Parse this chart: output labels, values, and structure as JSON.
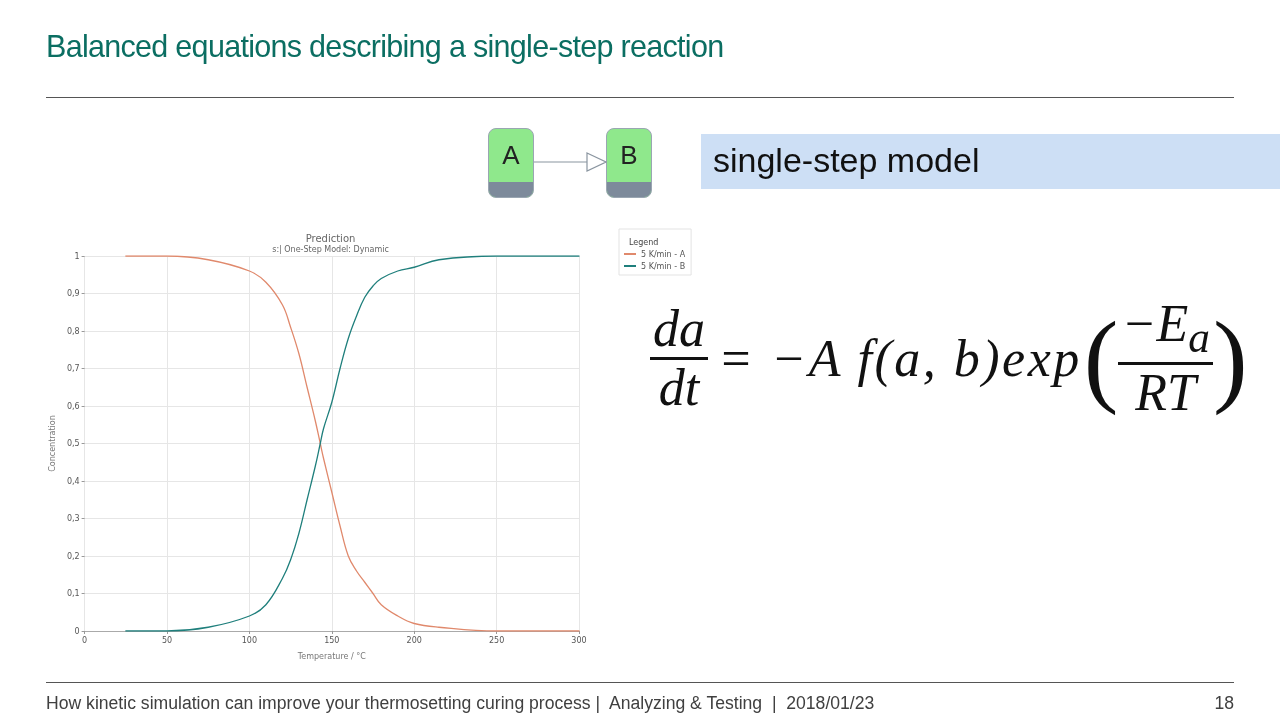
{
  "chart_data": {
    "type": "line",
    "title": "Prediction",
    "subtitle": "s:| One-Step Model: Dynamic",
    "xlabel": "Temperature / °C",
    "ylabel": "Concentration",
    "legend_title": "Legend",
    "annotations": [
      "Balanced equations describing a single-step reaction",
      "single-step model",
      "da",
      "dt",
      "= −A f(a, b)exp",
      "(",
      "−E$_{a}$",
      "RT",
      ")",
      "A",
      "B",
      "How kinetic simulation can improve your thermosetting curing process |  Analyzing & Testing  |  2018/01/23",
      "18"
    ],
    "x": [
      25,
      50,
      75,
      100,
      110,
      120,
      125,
      130,
      135,
      140,
      143,
      145,
      150,
      155,
      160,
      165,
      170,
      175,
      180,
      190,
      200,
      215,
      250,
      300
    ],
    "series": [
      {
        "name": "5 K/min - A",
        "color": "#e0896c",
        "values": [
          1,
          1,
          0.99,
          0.96,
          0.93,
          0.87,
          0.81,
          0.74,
          0.65,
          0.56,
          0.5,
          0.46,
          0.37,
          0.28,
          0.2,
          0.16,
          0.13,
          0.1,
          0.07,
          0.04,
          0.02,
          0.01,
          0,
          0
        ]
      },
      {
        "name": "5 K/min - B",
        "color": "#1f7f7c",
        "values": [
          0,
          0,
          0.01,
          0.04,
          0.07,
          0.14,
          0.19,
          0.26,
          0.35,
          0.44,
          0.5,
          0.54,
          0.61,
          0.7,
          0.78,
          0.84,
          0.89,
          0.92,
          0.94,
          0.96,
          0.97,
          0.99,
          1,
          1
        ]
      }
    ],
    "xlim": [
      0,
      300
    ],
    "xticks": [
      0,
      50,
      100,
      150,
      200,
      250,
      300
    ],
    "ylim": [
      0,
      1
    ],
    "yticks": [
      0,
      {
        "value": 0.1,
        "label": "0,1"
      },
      {
        "value": 0.2,
        "label": "0,2"
      },
      {
        "value": 0.3,
        "label": "0,3"
      },
      {
        "value": 0.4,
        "label": "0,4"
      },
      {
        "value": 0.5,
        "label": "0,5"
      },
      {
        "value": 0.6,
        "label": "0,6"
      },
      {
        "value": 0.7,
        "label": "0,7"
      },
      {
        "value": 0.8,
        "label": "0,8"
      },
      {
        "value": 0.9,
        "label": "0,9"
      },
      1
    ],
    "grid": true,
    "legend": "top right",
    "marker": "none",
    "line_style": "solid"
  }
}
